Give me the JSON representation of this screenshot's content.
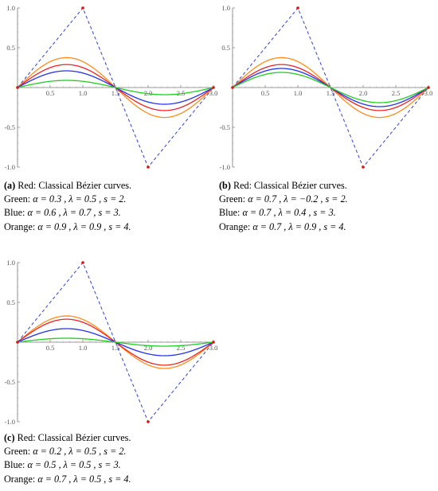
{
  "chart_data": [
    {
      "type": "line",
      "panel_label": "a",
      "caption": {
        "lines": [
          {
            "label": "(a)",
            "text": "Red: Classical Bézier curves."
          },
          {
            "name": "Green:",
            "params": "α = 0.3 , λ = 0.5 , s = 2."
          },
          {
            "name": "Blue:",
            "params": "α = 0.6 , λ = 0.7 , s = 3."
          },
          {
            "name": "Orange:",
            "params": "α = 0.9 , λ = 0.9 , s = 4."
          }
        ]
      },
      "xlim": [
        0,
        3.0
      ],
      "ylim": [
        -1.0,
        1.0
      ],
      "x_ticks": [
        "0.5",
        "1.0",
        "1.5",
        "2.0",
        "2.5",
        "3.0"
      ],
      "y_ticks": [
        "1.0",
        "0.5",
        "-0.5",
        "-1.0"
      ],
      "control_points": [
        [
          0,
          0
        ],
        [
          1,
          1
        ],
        [
          2,
          -1
        ],
        [
          3,
          0
        ]
      ],
      "control_polygon_color": "#3344cc",
      "control_point_color": "#dd1111",
      "series": [
        {
          "color": "#ff8c1a",
          "y": [
            0,
            0.376,
            0,
            -0.376,
            0
          ]
        },
        {
          "color": "#ee2222",
          "y": [
            0,
            0.289,
            0,
            -0.289,
            0
          ]
        },
        {
          "color": "#2233ee",
          "y": [
            0,
            0.21,
            0,
            -0.21,
            0
          ]
        },
        {
          "color": "#22cc22",
          "y": [
            0,
            0.09,
            0,
            -0.09,
            0
          ]
        }
      ]
    },
    {
      "type": "line",
      "panel_label": "b",
      "caption": {
        "lines": [
          {
            "label": "(b)",
            "text": "Red: Classical Bézier curves."
          },
          {
            "name": "Green:",
            "params": "α = 0.7 , λ = −0.2 , s = 2."
          },
          {
            "name": "Blue:",
            "params": "α = 0.7 , λ = 0.4 , s = 3."
          },
          {
            "name": "Orange:",
            "params": "α = 0.7 , λ = 0.9 , s = 4."
          }
        ]
      },
      "xlim": [
        0,
        3.0
      ],
      "ylim": [
        -1.0,
        1.0
      ],
      "x_ticks": [
        "0.5",
        "1.0",
        "1.5",
        "2.0",
        "2.5",
        "3.0"
      ],
      "y_ticks": [
        "1.0",
        "0.5",
        "-0.5",
        "-1.0"
      ],
      "control_points": [
        [
          0,
          0
        ],
        [
          1,
          1
        ],
        [
          2,
          -1
        ],
        [
          3,
          0
        ]
      ],
      "control_polygon_color": "#3344cc",
      "control_point_color": "#dd1111",
      "series": [
        {
          "color": "#ff8c1a",
          "y": [
            0,
            0.376,
            0,
            -0.376,
            0
          ]
        },
        {
          "color": "#ee2222",
          "y": [
            0,
            0.289,
            0,
            -0.289,
            0
          ]
        },
        {
          "color": "#2233ee",
          "y": [
            0,
            0.24,
            0,
            -0.24,
            0
          ]
        },
        {
          "color": "#22cc22",
          "y": [
            0,
            0.19,
            0,
            -0.19,
            0
          ]
        }
      ]
    },
    {
      "type": "line",
      "panel_label": "c",
      "caption": {
        "lines": [
          {
            "label": "(c)",
            "text": "Red: Classical Bézier curves."
          },
          {
            "name": "Green:",
            "params": "α = 0.2 , λ = 0.5 , s = 2."
          },
          {
            "name": "Blue:",
            "params": "α = 0.5 , λ = 0.5 , s = 3."
          },
          {
            "name": "Orange:",
            "params": "α = 0.7 , λ = 0.5 , s = 4."
          }
        ]
      },
      "xlim": [
        0,
        3.0
      ],
      "ylim": [
        -1.0,
        1.0
      ],
      "x_ticks": [
        "0.5",
        "1.0",
        "1.5",
        "2.0",
        "2.5",
        "3.0"
      ],
      "y_ticks": [
        "1.0",
        "0.5",
        "-0.5",
        "-1.0"
      ],
      "control_points": [
        [
          0,
          0
        ],
        [
          1,
          1
        ],
        [
          2,
          -1
        ],
        [
          3,
          0
        ]
      ],
      "control_polygon_color": "#3344cc",
      "control_point_color": "#dd1111",
      "series": [
        {
          "color": "#ff8c1a",
          "y": [
            0,
            0.33,
            0,
            -0.33,
            0
          ]
        },
        {
          "color": "#ee2222",
          "y": [
            0,
            0.289,
            0,
            -0.289,
            0
          ]
        },
        {
          "color": "#2233ee",
          "y": [
            0,
            0.17,
            0,
            -0.17,
            0
          ]
        },
        {
          "color": "#22cc22",
          "y": [
            0,
            0.05,
            0,
            -0.05,
            0
          ]
        }
      ]
    }
  ]
}
